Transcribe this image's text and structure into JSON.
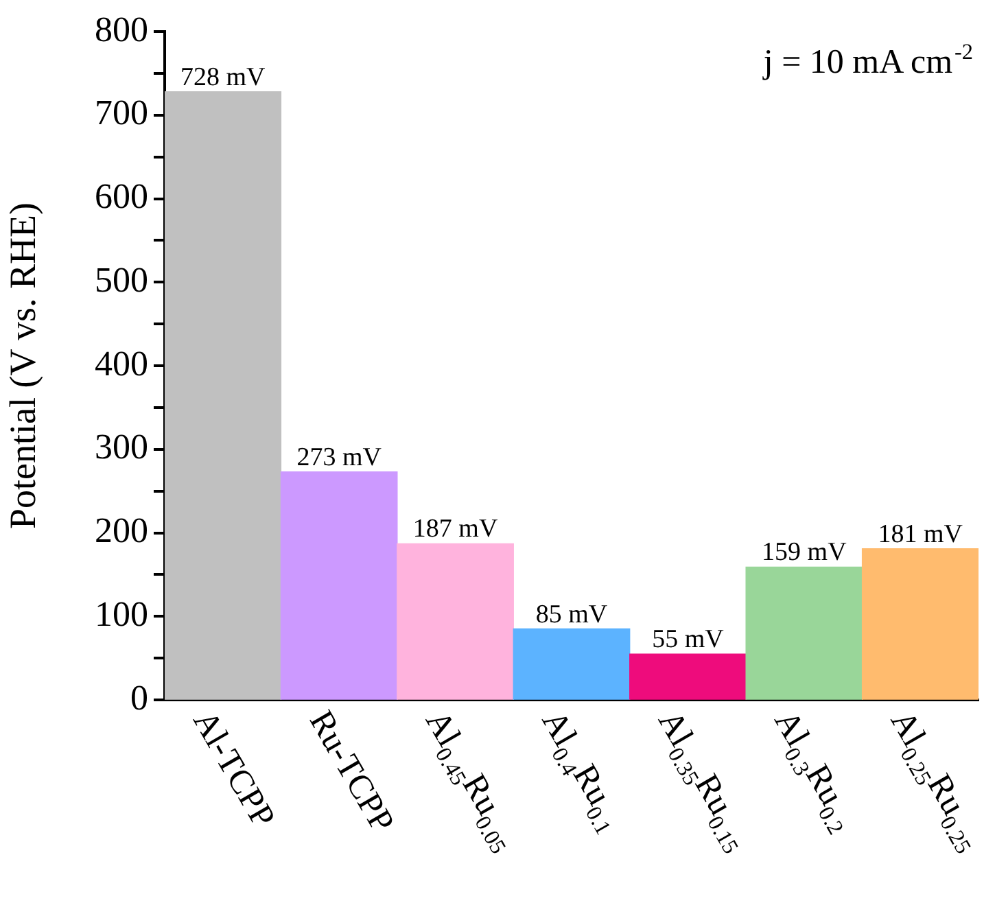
{
  "chart_data": {
    "type": "bar",
    "ylabel": "Potential (V vs. RHE)",
    "categories": [
      "Al-TCPP",
      "Ru-TCPP",
      "Al$_{0.45}$Ru$_{0.05}$",
      "Al$_{0.4}$Ru$_{0.1}$",
      "Al$_{0.35}$Ru$_{0.15}$",
      "Al$_{0.3}$Ru$_{0.2}$",
      "Al$_{0.25}$Ru$_{0.25}$"
    ],
    "values": [
      728,
      273,
      187,
      85,
      55,
      159,
      181
    ],
    "colors": [
      "#c0c0c0",
      "#cc99ff",
      "#ffb3dd",
      "#5cb3ff",
      "#ee0c7c",
      "#99d699",
      "#ffbb6e"
    ],
    "value_labels": [
      "728 mV",
      "273 mV",
      "187 mV",
      "85 mV",
      "55 mV",
      "159 mV",
      "181 mV"
    ],
    "ylim": [
      0,
      800
    ],
    "yticks": [
      0,
      {
        "value": 50,
        "label": null
      },
      100,
      {
        "value": 150,
        "label": null
      },
      200,
      {
        "value": 250,
        "label": null
      },
      300,
      {
        "value": 350,
        "label": null
      },
      400,
      {
        "value": 450,
        "label": null
      },
      500,
      {
        "value": 550,
        "label": null
      },
      600,
      {
        "value": 650,
        "label": null
      },
      700,
      {
        "value": 750,
        "label": null
      },
      800
    ],
    "annotations": [
      "j = 10 mA cm$^{-2}$"
    ],
    "grid": false,
    "legend": false
  }
}
